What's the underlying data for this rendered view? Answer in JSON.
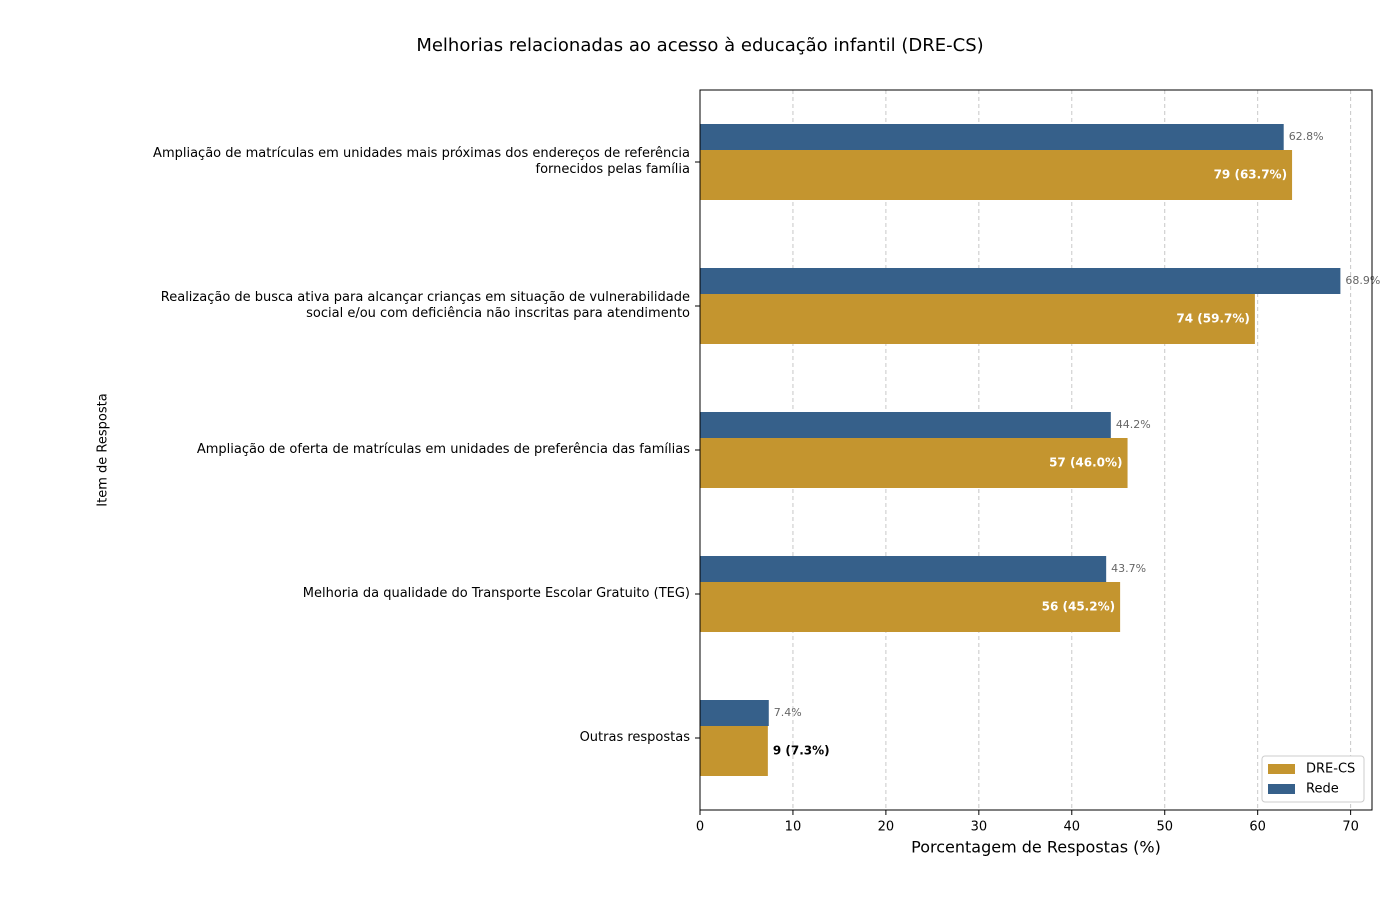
{
  "chart_data": {
    "type": "barh",
    "title": "Melhorias relacionadas ao acesso à educação infantil (DRE-CS)",
    "xlabel": "Porcentagem de Respostas (%)",
    "ylabel": "Item de Resposta",
    "categories": [
      "Ampliação de matrículas em unidades mais próximas dos endereços de referência\nfornecidos pelas família",
      "Realização de busca ativa para alcançar crianças em situação de vulnerabilidade\nsocial e/ou com deficiência não inscritas para atendimento",
      "Ampliação de oferta de matrículas em unidades de preferência das famílias",
      "Melhoria da qualidade do Transporte Escolar Gratuito (TEG)",
      "Outras respostas"
    ],
    "series": [
      {
        "name": "DRE-CS",
        "color": "#c4952f",
        "values": [
          63.7,
          59.7,
          46.0,
          45.2,
          7.3
        ],
        "value_labels": [
          "79 (63.7%)",
          "74 (59.7%)",
          "57 (46.0%)",
          "56 (45.2%)",
          "9 (7.3%)"
        ]
      },
      {
        "name": "Rede",
        "color": "#36608a",
        "values": [
          62.8,
          68.9,
          44.2,
          43.7,
          7.4
        ],
        "value_labels": [
          "62.8%",
          "68.9%",
          "44.2%",
          "43.7%",
          "7.4%"
        ]
      }
    ],
    "xlim": [
      0,
      72.3
    ],
    "xticks": [
      0,
      10,
      20,
      30,
      40,
      50,
      60,
      70
    ],
    "grid": true,
    "legend": "lower right"
  }
}
